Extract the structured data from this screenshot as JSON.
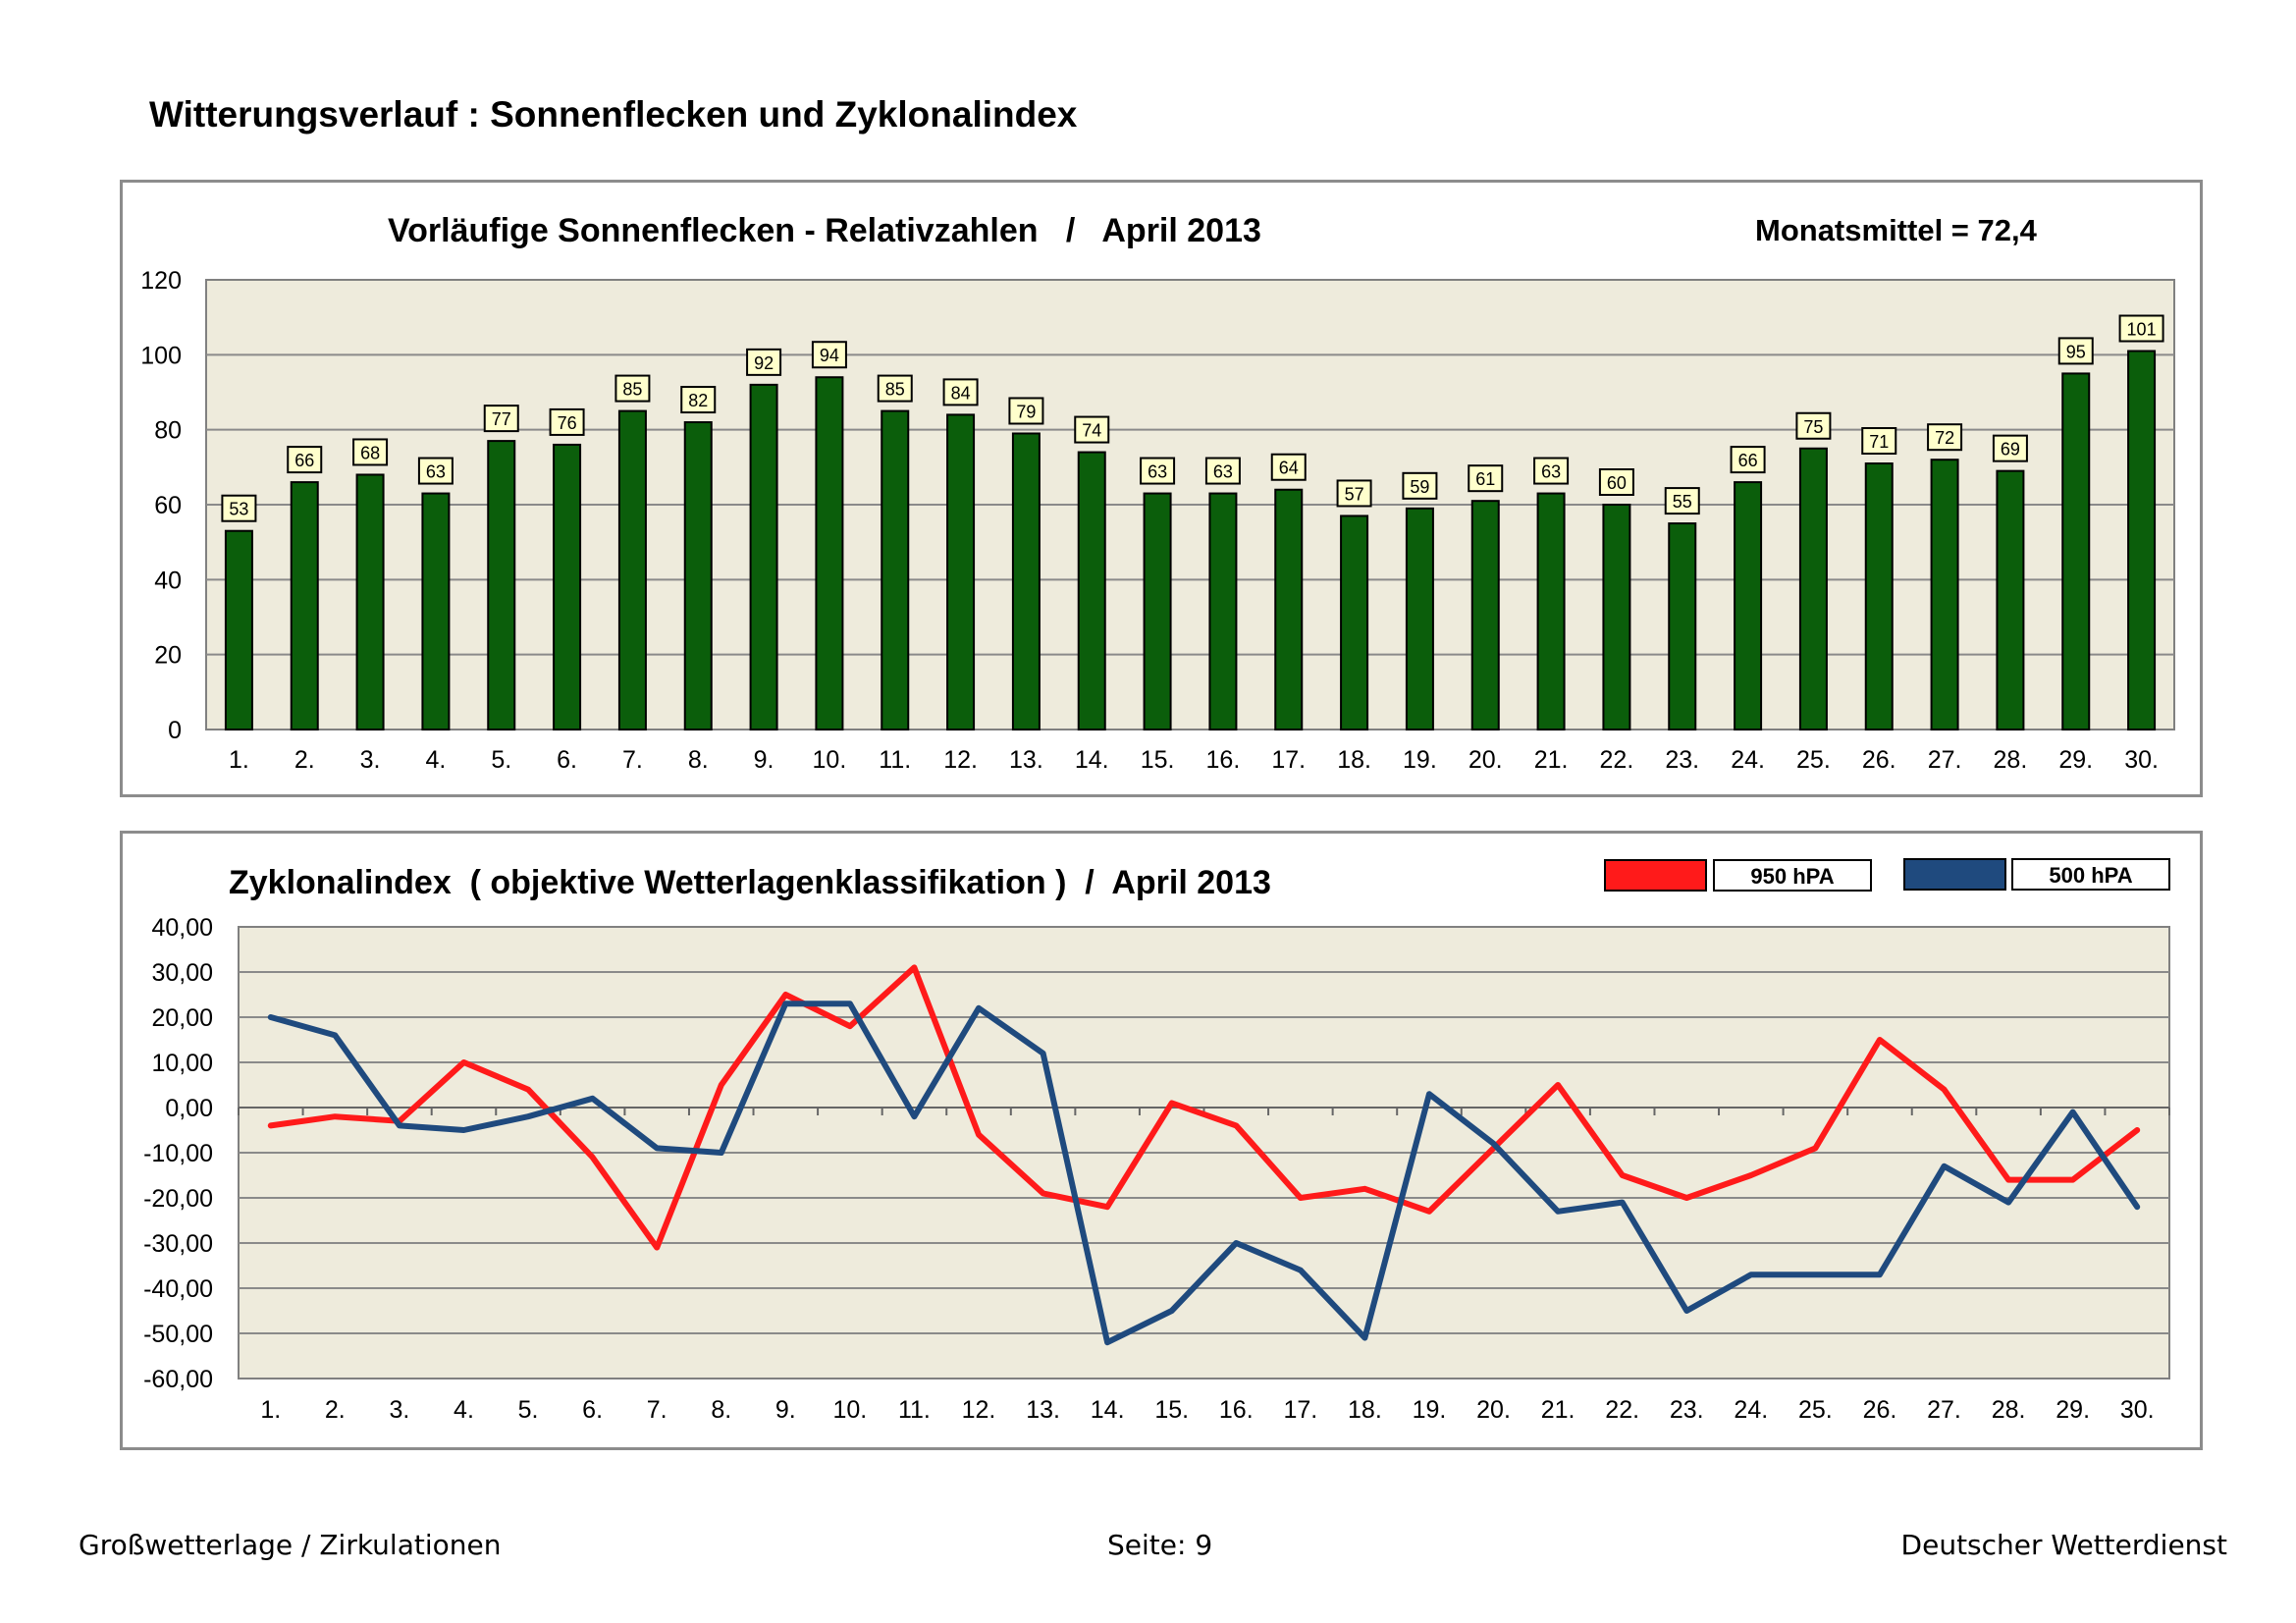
{
  "page": {
    "title": "Witterungsverlauf : Sonnenflecken und Zyklonalindex"
  },
  "footer": {
    "left": "Großwetterlage / Zirkulationen",
    "center": "Seite: 9",
    "right": "Deutscher Wetterdienst"
  },
  "colors": {
    "bar": "#0b5e0b",
    "plot_bg": "#eeebdc",
    "label_bg": "#ffffcc",
    "mean": "#1a6b1a",
    "red": "#ff1a1a",
    "blue": "#1f4a7e"
  },
  "chart_data": [
    {
      "type": "bar",
      "title": "Vorläufige Sonnenflecken - Relativzahlen   /   April 2013",
      "annotation": "Monatsmittel = 72,4",
      "categories": [
        "1.",
        "2.",
        "3.",
        "4.",
        "5.",
        "6.",
        "7.",
        "8.",
        "9.",
        "10.",
        "11.",
        "12.",
        "13.",
        "14.",
        "15.",
        "16.",
        "17.",
        "18.",
        "19.",
        "20.",
        "21.",
        "22.",
        "23.",
        "24.",
        "25.",
        "26.",
        "27.",
        "28.",
        "29.",
        "30."
      ],
      "values": [
        53,
        66,
        68,
        63,
        77,
        76,
        85,
        82,
        92,
        94,
        85,
        84,
        79,
        74,
        63,
        63,
        64,
        57,
        59,
        61,
        63,
        60,
        55,
        66,
        75,
        71,
        72,
        69,
        95,
        101
      ],
      "yticks": [
        "0",
        "20",
        "40",
        "60",
        "80",
        "100",
        "120"
      ],
      "ylim": [
        0,
        120
      ],
      "xlabel": "",
      "ylabel": "",
      "grid": true
    },
    {
      "type": "line",
      "title": "Zyklonalindex  ( objektive Wetterlagenklassifikation )  /  April 2013",
      "categories": [
        "1.",
        "2.",
        "3.",
        "4.",
        "5.",
        "6.",
        "7.",
        "8.",
        "9.",
        "10.",
        "11.",
        "12.",
        "13.",
        "14.",
        "15.",
        "16.",
        "17.",
        "18.",
        "19.",
        "20.",
        "21.",
        "22.",
        "23.",
        "24.",
        "25.",
        "26.",
        "27.",
        "28.",
        "29.",
        "30."
      ],
      "series": [
        {
          "name": "950 hPA",
          "color": "#ff1a1a",
          "values": [
            -4,
            -2,
            -3,
            10,
            4,
            -11,
            -31,
            5,
            25,
            18,
            31,
            -6,
            -19,
            -22,
            1,
            -4,
            -20,
            -18,
            -23,
            -9,
            5,
            -15,
            -20,
            -15,
            -9,
            15,
            4,
            -16,
            -16,
            -5
          ]
        },
        {
          "name": "500 hPA",
          "color": "#1f4a7e",
          "values": [
            20,
            16,
            -4,
            -5,
            -2,
            2,
            -9,
            -10,
            23,
            23,
            -2,
            22,
            12,
            -52,
            -45,
            -30,
            -36,
            -51,
            3,
            -8,
            -23,
            -21,
            -45,
            -37,
            -37,
            -37,
            -13,
            -21,
            -1,
            -22
          ]
        }
      ],
      "yticks": [
        "40,00",
        "30,00",
        "20,00",
        "10,00",
        "0,00",
        "-10,00",
        "-20,00",
        "-30,00",
        "-40,00",
        "-50,00",
        "-60,00"
      ],
      "ylim": [
        -60,
        40
      ],
      "legend": "top-right",
      "xlabel": "",
      "ylabel": "",
      "grid": true
    }
  ]
}
